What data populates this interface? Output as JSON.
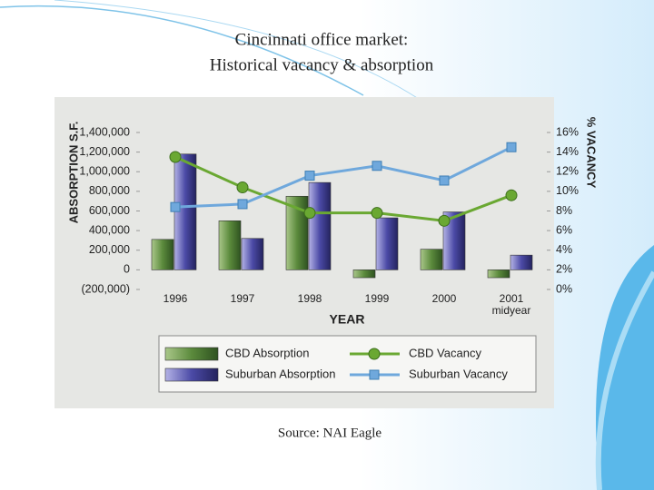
{
  "chart_data": {
    "type": "bar",
    "title": "Cincinnati office market:",
    "subtitle": "Historical vacancy & absorption",
    "source": "Source: NAI Eagle",
    "y_label": "ABSORPTION S.F.",
    "y2_label": "% VACANCY",
    "x_label": "YEAR",
    "x_note": "midyear",
    "categories": [
      "1996",
      "1997",
      "1998",
      "1999",
      "2000",
      "2001"
    ],
    "series": [
      {
        "name": "CBD Absorption",
        "type": "bar",
        "color": "#5b8a3c",
        "values": [
          310000,
          500000,
          750000,
          -80000,
          210000,
          -80000
        ]
      },
      {
        "name": "Suburban Absorption",
        "type": "bar",
        "color": "#4b4aa6",
        "values": [
          1180000,
          320000,
          890000,
          530000,
          590000,
          150000
        ]
      },
      {
        "name": "CBD Vacancy",
        "type": "line",
        "axis": "y2",
        "color": "#6aa832",
        "values": [
          13.5,
          10.4,
          7.8,
          7.8,
          7.0,
          9.6
        ]
      },
      {
        "name": "Suburban Vacancy",
        "type": "line",
        "axis": "y2",
        "color": "#6fa8dc",
        "values": [
          8.4,
          8.7,
          11.6,
          12.6,
          11.1,
          14.5
        ]
      }
    ],
    "ylim": [
      -200000,
      1400000
    ],
    "yticks": [
      {
        "value": -200000,
        "label": "(200,000)"
      },
      0,
      {
        "value": 200000,
        "label": "200,000"
      },
      {
        "value": 400000,
        "label": "400,000"
      },
      {
        "value": 600000,
        "label": "600,000"
      },
      {
        "value": 800000,
        "label": "800,000"
      },
      {
        "value": 1000000,
        "label": "1,000,000"
      },
      {
        "value": 1200000,
        "label": "1,200,000"
      },
      {
        "value": 1400000,
        "label": "1,400,000"
      }
    ],
    "y2lim": [
      0,
      16
    ],
    "y2ticks": [
      {
        "value": 0,
        "label": "0%"
      },
      {
        "value": 2,
        "label": "2%"
      },
      {
        "value": 4,
        "label": "4%"
      },
      {
        "value": 6,
        "label": "6%"
      },
      {
        "value": 8,
        "label": "8%"
      },
      {
        "value": 10,
        "label": "10%"
      },
      {
        "value": 12,
        "label": "12%"
      },
      {
        "value": 14,
        "label": "14%"
      },
      {
        "value": 16,
        "label": "16%"
      }
    ]
  }
}
